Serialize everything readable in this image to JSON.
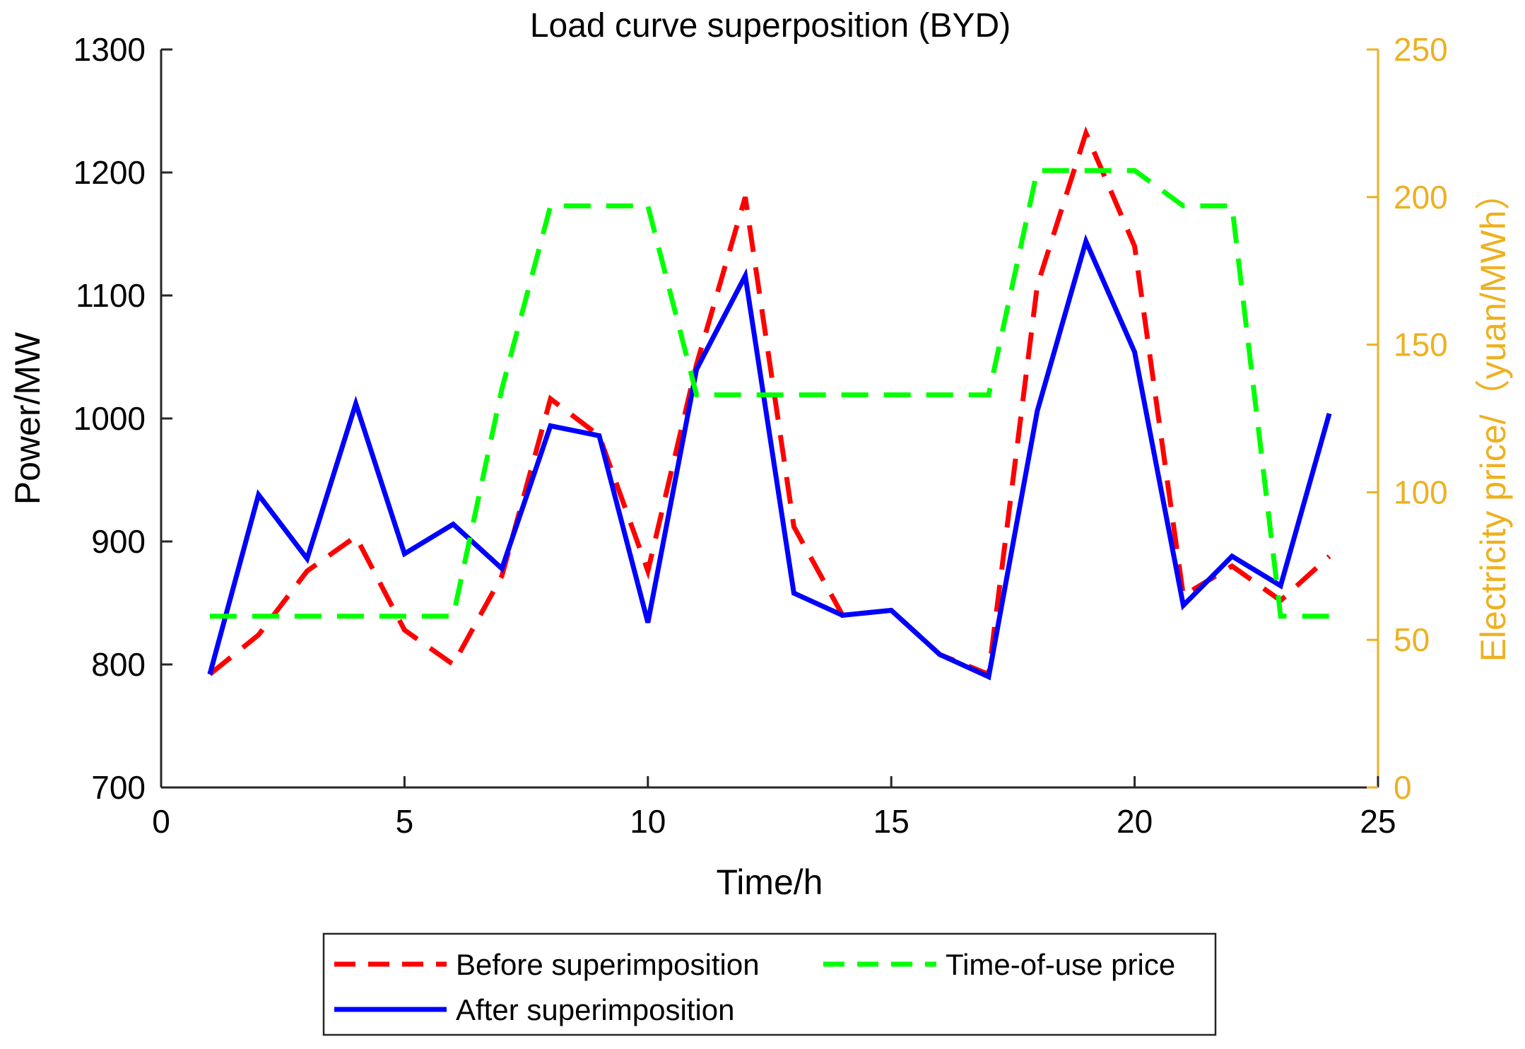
{
  "chart_data": {
    "type": "line",
    "title": "Load curve superposition (BYD)",
    "xlabel": "Time/h",
    "ylabel": "Power/MW",
    "y2label": "Electricity price/（yuan/MWh）",
    "xlim": [
      0,
      25
    ],
    "ylim": [
      700,
      1300
    ],
    "y2lim": [
      0,
      250
    ],
    "xticks": [
      0,
      5,
      10,
      15,
      20,
      25
    ],
    "yticks": [
      700,
      800,
      900,
      1000,
      1100,
      1200,
      1300
    ],
    "y2ticks": [
      0,
      50,
      100,
      150,
      200,
      250
    ],
    "grid": false,
    "legend_position": "bottom",
    "x": [
      1,
      2,
      3,
      4,
      5,
      6,
      7,
      8,
      9,
      10,
      11,
      12,
      13,
      14,
      15,
      16,
      17,
      18,
      19,
      20,
      21,
      22,
      23,
      24
    ],
    "series": [
      {
        "name": "Before superimposition",
        "axis": "left",
        "color": "#ff0000",
        "dash": "dashed",
        "values": [
          792,
          824,
          876,
          904,
          828,
          800,
          872,
          1016,
          986,
          876,
          1044,
          1180,
          912,
          840,
          844,
          808,
          792,
          1108,
          1232,
          1140,
          856,
          880,
          852,
          888
        ]
      },
      {
        "name": "After superimposition",
        "axis": "left",
        "color": "#0000ff",
        "dash": "solid",
        "values": [
          792,
          938,
          886,
          1012,
          890,
          914,
          878,
          994,
          986,
          834,
          1040,
          1116,
          858,
          840,
          844,
          808,
          790,
          1006,
          1144,
          1054,
          848,
          888,
          864,
          1004
        ]
      },
      {
        "name": "Time-of-use price",
        "axis": "right",
        "color": "#00ff00",
        "dash": "dashed",
        "values": [
          58,
          58,
          58,
          58,
          58,
          58,
          135,
          197,
          197,
          197,
          133,
          133,
          133,
          133,
          133,
          133,
          133,
          209,
          209,
          209,
          197,
          197,
          58,
          58
        ]
      }
    ],
    "axis_color_right": "#EDB120"
  }
}
